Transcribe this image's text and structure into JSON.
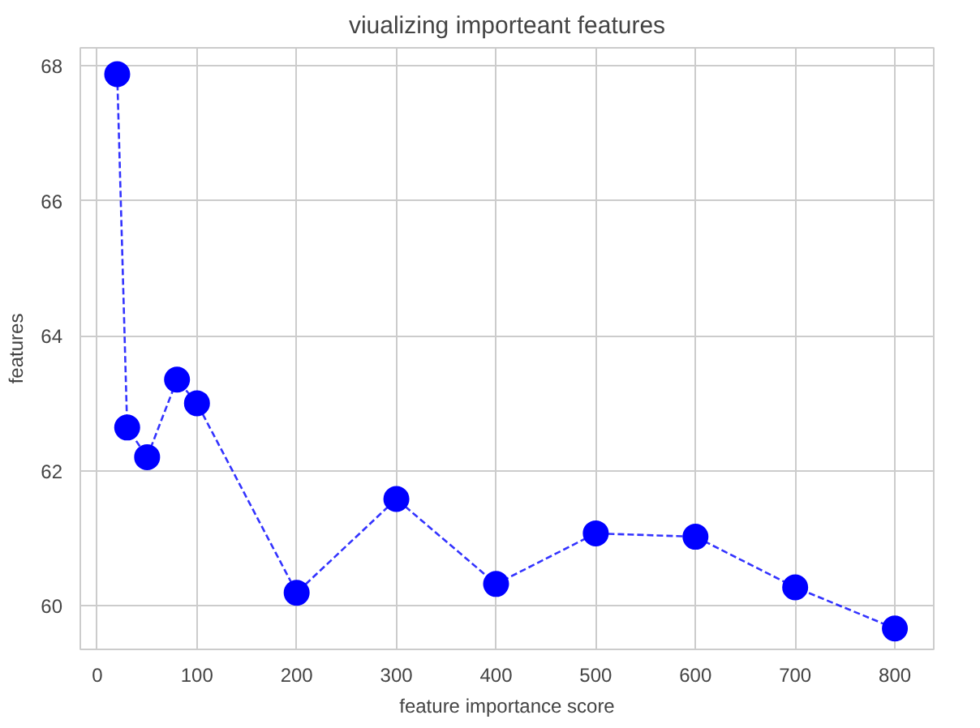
{
  "chart_data": {
    "type": "line",
    "title": "viualizing importeant features",
    "xlabel": "feature importance score",
    "ylabel": "features",
    "x": [
      20,
      30,
      50,
      80,
      100,
      200,
      300,
      400,
      500,
      600,
      700,
      800
    ],
    "series": [
      {
        "color": "#0000ff",
        "values": [
          67.88,
          62.64,
          62.2,
          63.35,
          63.0,
          60.19,
          61.58,
          60.32,
          61.07,
          61.02,
          60.27,
          59.66
        ]
      }
    ],
    "xlim": [
      -17,
      839
    ],
    "ylim": [
      59.35,
      68.27
    ],
    "xticks": [
      0,
      100,
      200,
      300,
      400,
      500,
      600,
      700,
      800
    ],
    "yticks": [
      60,
      62,
      64,
      66,
      68
    ],
    "grid": true,
    "marker": "circle",
    "line_style": "dashed"
  }
}
